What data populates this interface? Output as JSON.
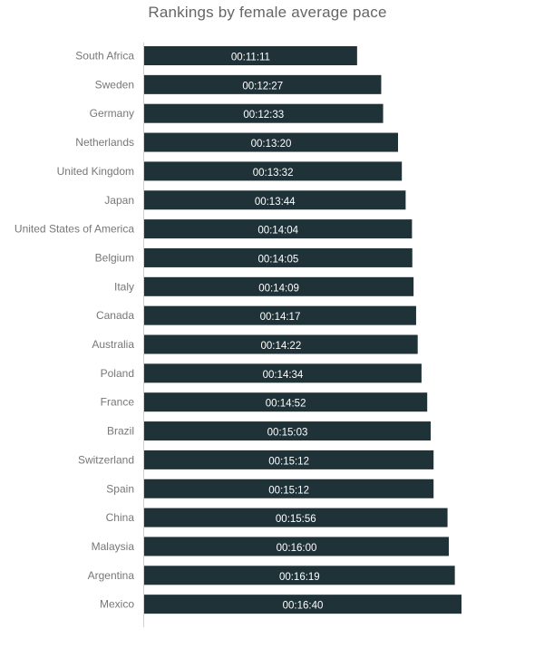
{
  "chart_data": {
    "type": "bar",
    "orientation": "horizontal",
    "title": "Rankings by female average pace",
    "xlabel": "",
    "ylabel": "",
    "unit": "seconds",
    "xlim": [
      0,
      1000
    ],
    "grid": false,
    "legend": "none",
    "bar_color": "#1f3238",
    "categories": [
      "South Africa",
      "Sweden",
      "Germany",
      "Netherlands",
      "United Kingdom",
      "Japan",
      "United States of America",
      "Belgium",
      "Italy",
      "Canada",
      "Australia",
      "Poland",
      "France",
      "Brazil",
      "Switzerland",
      "Spain",
      "China",
      "Malaysia",
      "Argentina",
      "Mexico"
    ],
    "values": [
      671,
      747,
      753,
      800,
      812,
      824,
      844,
      845,
      849,
      857,
      862,
      874,
      892,
      903,
      912,
      912,
      956,
      960,
      979,
      1000
    ],
    "labels": [
      "00:11:11",
      "00:12:27",
      "00:12:33",
      "00:13:20",
      "00:13:32",
      "00:13:44",
      "00:14:04",
      "00:14:05",
      "00:14:09",
      "00:14:17",
      "00:14:22",
      "00:14:34",
      "00:14:52",
      "00:15:03",
      "00:15:12",
      "00:15:12",
      "00:15:56",
      "00:16:00",
      "00:16:19",
      "00:16:40"
    ]
  }
}
